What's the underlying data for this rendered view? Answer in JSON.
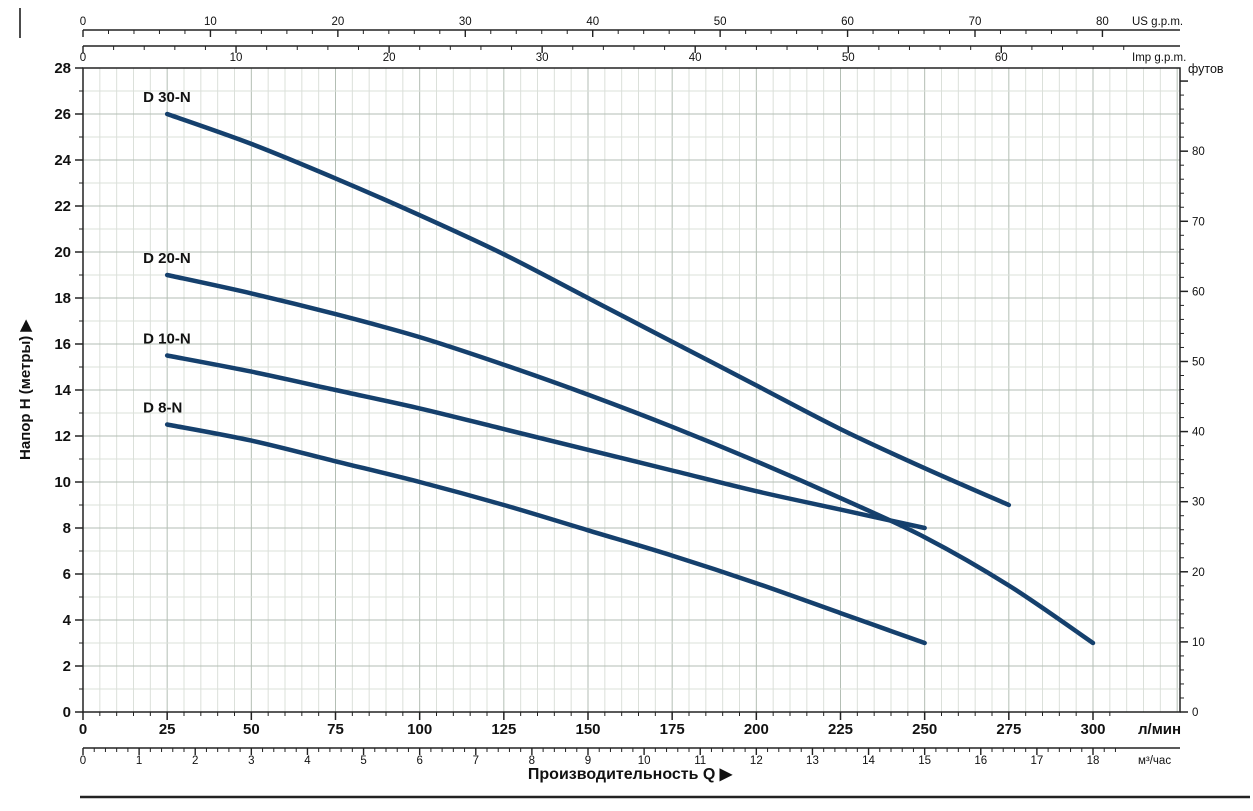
{
  "chart_data": {
    "type": "line",
    "title": "",
    "xlabel": "Производительность  Q  ▶",
    "ylabel": "Напор H (метры)  ▶",
    "curve_color": "#15406d",
    "grid_minor_color": "#dbe0da",
    "grid_major_color": "#b3beb4",
    "axes": {
      "bottom_primary": {
        "label": "л/мин",
        "min": 0,
        "max": 300,
        "major_step": 25,
        "minor_step": 5
      },
      "bottom_secondary": {
        "label": "м³/час",
        "min": 0,
        "max": 18,
        "major_step": 1,
        "minor_step": 0.2,
        "lmin_per_unit": 16.6667
      },
      "left": {
        "label": "Напор H (метры)",
        "min": 0,
        "max": 28,
        "major_step": 2,
        "minor_step": 1
      },
      "right": {
        "label": "футов",
        "min": 0,
        "max": 90,
        "label_max": 80,
        "major_step": 10,
        "minor_step": 2,
        "m_per_unit": 0.3048
      },
      "top_primary": {
        "label": "US g.p.m.",
        "min": 0,
        "max": 80,
        "major_step": 10,
        "minor_step": 2,
        "lmin_per_unit": 3.785
      },
      "top_secondary": {
        "label": "Imp g.p.m.",
        "min": 0,
        "max": 60,
        "major_step": 10,
        "minor_step": 2,
        "lmin_per_unit": 4.546
      }
    },
    "series": [
      {
        "name": "D 30-N",
        "q_lmin": [
          25,
          50,
          75,
          100,
          125,
          150,
          175,
          200,
          225,
          250,
          275
        ],
        "h_m": [
          26.0,
          24.7,
          23.2,
          21.6,
          19.9,
          18.0,
          16.1,
          14.2,
          12.3,
          10.6,
          9.0
        ]
      },
      {
        "name": "D 20-N",
        "q_lmin": [
          25,
          50,
          75,
          100,
          125,
          150,
          175,
          200,
          225,
          250,
          275,
          300
        ],
        "h_m": [
          19.0,
          18.2,
          17.3,
          16.3,
          15.1,
          13.8,
          12.4,
          10.9,
          9.3,
          7.6,
          5.5,
          3.0
        ]
      },
      {
        "name": "D 10-N",
        "q_lmin": [
          25,
          50,
          75,
          100,
          125,
          150,
          175,
          200,
          225,
          250
        ],
        "h_m": [
          15.5,
          14.8,
          14.0,
          13.2,
          12.3,
          11.4,
          10.5,
          9.6,
          8.8,
          8.0
        ]
      },
      {
        "name": "D 8-N",
        "q_lmin": [
          25,
          50,
          75,
          100,
          125,
          150,
          175,
          200,
          225,
          250
        ],
        "h_m": [
          12.5,
          11.8,
          10.9,
          10.0,
          9.0,
          7.9,
          6.8,
          5.6,
          4.3,
          3.0
        ]
      }
    ]
  }
}
